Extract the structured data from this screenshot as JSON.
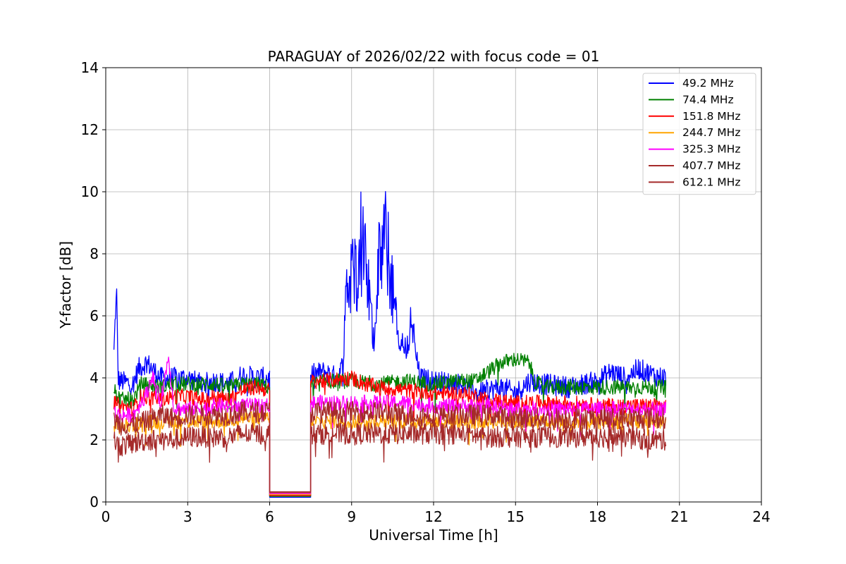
{
  "chart_data": {
    "type": "line",
    "title": "PARAGUAY of 2026/02/22 with focus code = 01",
    "xlabel": "Universal Time [h]",
    "ylabel": "Y-factor [dB]",
    "xlim": [
      0,
      24
    ],
    "ylim": [
      0,
      14
    ],
    "xticks": [
      0,
      3,
      6,
      9,
      12,
      15,
      18,
      21,
      24
    ],
    "yticks": [
      0,
      2,
      4,
      6,
      8,
      10,
      12,
      14
    ],
    "grid": true,
    "legend_position": "top-right",
    "gaps": [
      [
        6.0,
        7.5
      ]
    ],
    "series": [
      {
        "name": " 49.2 MHz",
        "color": "#0000ff",
        "points": [
          [
            0.3,
            4.8
          ],
          [
            0.35,
            6.0
          ],
          [
            0.4,
            6.7
          ],
          [
            0.45,
            4.0
          ],
          [
            0.5,
            3.9
          ],
          [
            1.0,
            3.8
          ],
          [
            1.2,
            4.3
          ],
          [
            1.5,
            4.5
          ],
          [
            2.0,
            4.0
          ],
          [
            2.5,
            4.0
          ],
          [
            3.0,
            4.0
          ],
          [
            3.5,
            3.8
          ],
          [
            4.0,
            3.9
          ],
          [
            4.5,
            3.8
          ],
          [
            5.0,
            4.1
          ],
          [
            5.5,
            4.0
          ],
          [
            6.0,
            4.0
          ],
          [
            7.5,
            4.1
          ],
          [
            8.0,
            4.2
          ],
          [
            8.5,
            4.0
          ],
          [
            8.7,
            4.5
          ],
          [
            8.8,
            6.5
          ],
          [
            9.2,
            7.0
          ],
          [
            9.3,
            7.9
          ],
          [
            9.6,
            6.5
          ],
          [
            9.8,
            5.0
          ],
          [
            10.0,
            7.0
          ],
          [
            10.2,
            7.8
          ],
          [
            10.5,
            6.5
          ],
          [
            10.7,
            5.0
          ],
          [
            11.0,
            4.8
          ],
          [
            11.2,
            5.5
          ],
          [
            11.5,
            4.0
          ],
          [
            12.0,
            3.9
          ],
          [
            13.0,
            3.8
          ],
          [
            13.6,
            3.5
          ],
          [
            14.0,
            3.6
          ],
          [
            14.5,
            3.7
          ],
          [
            15.0,
            3.5
          ],
          [
            15.5,
            3.9
          ],
          [
            16.0,
            3.8
          ],
          [
            17.0,
            3.7
          ],
          [
            18.0,
            3.9
          ],
          [
            18.5,
            4.2
          ],
          [
            19.0,
            4.0
          ],
          [
            19.5,
            4.3
          ],
          [
            20.0,
            4.1
          ],
          [
            20.5,
            4.0
          ]
        ]
      },
      {
        "name": " 74.4 MHz",
        "color": "#008000",
        "points": [
          [
            0.3,
            3.6
          ],
          [
            0.5,
            3.3
          ],
          [
            1.0,
            3.3
          ],
          [
            1.3,
            3.8
          ],
          [
            2.0,
            3.7
          ],
          [
            2.5,
            3.8
          ],
          [
            3.0,
            3.8
          ],
          [
            3.5,
            3.8
          ],
          [
            4.0,
            3.8
          ],
          [
            4.5,
            3.7
          ],
          [
            5.0,
            3.8
          ],
          [
            5.5,
            3.8
          ],
          [
            6.0,
            3.7
          ],
          [
            7.5,
            3.8
          ],
          [
            8.0,
            3.9
          ],
          [
            9.0,
            3.9
          ],
          [
            10.0,
            3.8
          ],
          [
            11.0,
            3.9
          ],
          [
            12.0,
            3.8
          ],
          [
            13.0,
            3.9
          ],
          [
            13.5,
            3.9
          ],
          [
            14.0,
            4.2
          ],
          [
            14.5,
            4.5
          ],
          [
            15.0,
            4.6
          ],
          [
            15.5,
            4.5
          ],
          [
            15.7,
            3.9
          ],
          [
            16.0,
            3.7
          ],
          [
            17.0,
            3.7
          ],
          [
            18.0,
            3.7
          ],
          [
            19.0,
            3.7
          ],
          [
            20.0,
            3.7
          ],
          [
            20.5,
            3.7
          ]
        ]
      },
      {
        "name": " 151.8 MHz",
        "color": "#ff0000",
        "points": [
          [
            0.3,
            3.2
          ],
          [
            0.5,
            3.1
          ],
          [
            1.0,
            3.0
          ],
          [
            1.3,
            3.4
          ],
          [
            2.0,
            3.3
          ],
          [
            2.5,
            3.4
          ],
          [
            3.0,
            3.4
          ],
          [
            3.5,
            3.3
          ],
          [
            4.0,
            3.4
          ],
          [
            4.5,
            3.3
          ],
          [
            5.0,
            3.6
          ],
          [
            5.5,
            3.7
          ],
          [
            6.0,
            3.6
          ],
          [
            7.5,
            3.9
          ],
          [
            8.0,
            3.9
          ],
          [
            9.0,
            4.0
          ],
          [
            9.5,
            3.8
          ],
          [
            10.0,
            3.7
          ],
          [
            11.0,
            3.6
          ],
          [
            12.0,
            3.5
          ],
          [
            13.0,
            3.5
          ],
          [
            13.6,
            3.4
          ],
          [
            14.0,
            3.3
          ],
          [
            15.0,
            3.2
          ],
          [
            16.0,
            3.2
          ],
          [
            17.0,
            3.2
          ],
          [
            18.0,
            3.1
          ],
          [
            19.0,
            3.1
          ],
          [
            20.0,
            3.1
          ],
          [
            20.5,
            3.1
          ]
        ]
      },
      {
        "name": " 244.7 MHz",
        "color": "#ffa500",
        "points": [
          [
            0.3,
            2.5
          ],
          [
            0.5,
            2.4
          ],
          [
            1.0,
            2.5
          ],
          [
            2.0,
            2.6
          ],
          [
            3.0,
            2.6
          ],
          [
            4.0,
            2.6
          ],
          [
            5.0,
            2.7
          ],
          [
            6.0,
            2.7
          ],
          [
            7.5,
            2.6
          ],
          [
            8.0,
            2.6
          ],
          [
            9.0,
            2.6
          ],
          [
            10.0,
            2.6
          ],
          [
            11.0,
            2.6
          ],
          [
            12.0,
            2.6
          ],
          [
            13.0,
            2.6
          ],
          [
            14.0,
            2.6
          ],
          [
            15.0,
            2.6
          ],
          [
            16.0,
            2.6
          ],
          [
            17.0,
            2.5
          ],
          [
            18.0,
            2.6
          ],
          [
            19.0,
            2.6
          ],
          [
            20.0,
            2.6
          ],
          [
            20.5,
            2.6
          ]
        ]
      },
      {
        "name": " 325.3 MHz",
        "color": "#ff00ff",
        "points": [
          [
            0.3,
            2.9
          ],
          [
            0.5,
            2.8
          ],
          [
            1.0,
            2.8
          ],
          [
            1.5,
            3.5
          ],
          [
            1.7,
            4.1
          ],
          [
            2.0,
            3.2
          ],
          [
            2.3,
            4.7
          ],
          [
            2.5,
            3.0
          ],
          [
            3.0,
            3.0
          ],
          [
            3.5,
            3.0
          ],
          [
            4.0,
            3.1
          ],
          [
            4.5,
            3.1
          ],
          [
            5.0,
            3.1
          ],
          [
            5.5,
            3.1
          ],
          [
            6.0,
            3.1
          ],
          [
            7.5,
            3.2
          ],
          [
            8.0,
            3.2
          ],
          [
            9.0,
            3.2
          ],
          [
            10.0,
            3.2
          ],
          [
            11.0,
            3.2
          ],
          [
            12.0,
            3.1
          ],
          [
            13.0,
            3.1
          ],
          [
            14.0,
            3.1
          ],
          [
            15.0,
            3.0
          ],
          [
            16.0,
            3.0
          ],
          [
            17.0,
            3.0
          ],
          [
            18.0,
            3.0
          ],
          [
            19.0,
            3.0
          ],
          [
            20.0,
            3.0
          ],
          [
            20.5,
            3.0
          ]
        ]
      },
      {
        "name": " 407.7 MHz",
        "color": "#a52a2a",
        "points": [
          [
            0.3,
            2.7
          ],
          [
            0.5,
            2.5
          ],
          [
            1.0,
            2.5
          ],
          [
            1.5,
            2.6
          ],
          [
            2.0,
            2.8
          ],
          [
            2.5,
            2.7
          ],
          [
            3.0,
            2.8
          ],
          [
            3.5,
            2.8
          ],
          [
            4.0,
            2.8
          ],
          [
            4.5,
            2.8
          ],
          [
            5.0,
            2.9
          ],
          [
            5.5,
            2.9
          ],
          [
            6.0,
            2.9
          ],
          [
            7.5,
            2.9
          ],
          [
            8.0,
            2.9
          ],
          [
            9.0,
            2.9
          ],
          [
            10.0,
            2.9
          ],
          [
            11.0,
            2.8
          ],
          [
            12.0,
            2.8
          ],
          [
            13.0,
            2.8
          ],
          [
            14.0,
            2.8
          ],
          [
            15.0,
            2.7
          ],
          [
            16.0,
            2.7
          ],
          [
            17.0,
            2.7
          ],
          [
            18.0,
            2.7
          ],
          [
            19.0,
            2.7
          ],
          [
            20.0,
            2.7
          ],
          [
            20.5,
            2.7
          ]
        ]
      },
      {
        "name": " 612.1 MHz",
        "color": "#a52a2a",
        "points": [
          [
            0.3,
            2.0
          ],
          [
            0.5,
            1.8
          ],
          [
            1.0,
            1.9
          ],
          [
            1.5,
            2.0
          ],
          [
            2.0,
            2.0
          ],
          [
            2.5,
            2.0
          ],
          [
            3.0,
            2.1
          ],
          [
            3.5,
            2.1
          ],
          [
            4.0,
            2.1
          ],
          [
            4.5,
            2.1
          ],
          [
            5.0,
            2.2
          ],
          [
            5.5,
            2.2
          ],
          [
            6.0,
            2.2
          ],
          [
            7.5,
            2.2
          ],
          [
            8.0,
            2.2
          ],
          [
            9.0,
            2.2
          ],
          [
            10.0,
            2.2
          ],
          [
            11.0,
            2.2
          ],
          [
            12.0,
            2.2
          ],
          [
            13.0,
            2.2
          ],
          [
            14.0,
            2.1
          ],
          [
            15.0,
            2.1
          ],
          [
            16.0,
            2.1
          ],
          [
            17.0,
            2.1
          ],
          [
            18.0,
            2.1
          ],
          [
            19.0,
            2.1
          ],
          [
            20.0,
            2.0
          ],
          [
            20.5,
            2.0
          ]
        ]
      }
    ]
  }
}
